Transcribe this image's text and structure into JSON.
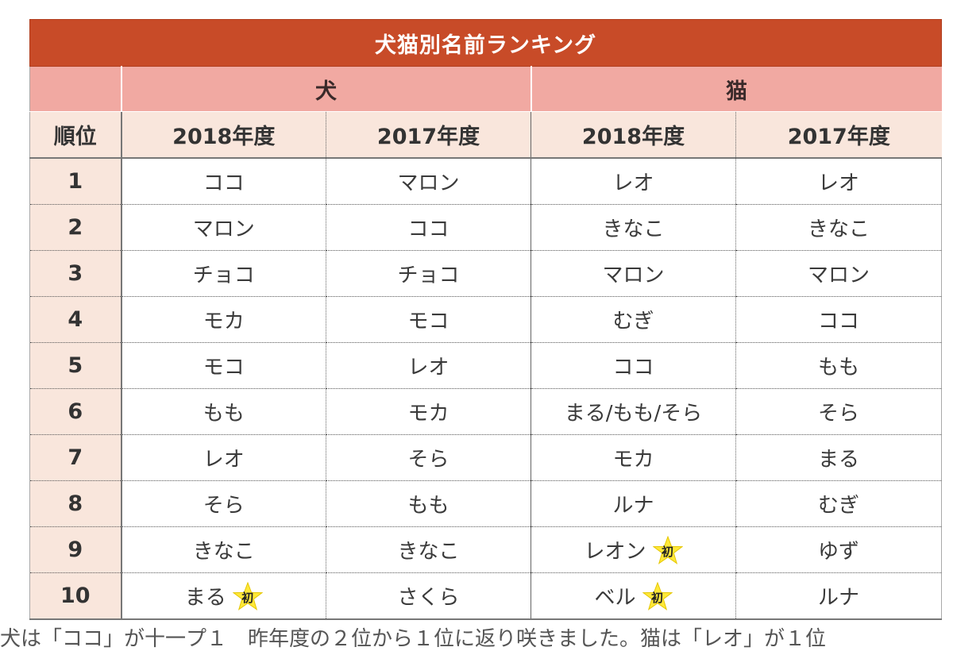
{
  "table": {
    "title": "犬猫別名前ランキング",
    "species": {
      "dog": "犬",
      "cat": "猫"
    },
    "rank_header": "順位",
    "years": [
      "2018年度",
      "2017年度",
      "2018年度",
      "2017年度"
    ],
    "first_badge": "初",
    "rows": [
      {
        "rank": "1",
        "dog_2018": "ココ",
        "dog_2017": "マロン",
        "cat_2018": "レオ",
        "cat_2017": "レオ"
      },
      {
        "rank": "2",
        "dog_2018": "マロン",
        "dog_2017": "ココ",
        "cat_2018": "きなこ",
        "cat_2017": "きなこ"
      },
      {
        "rank": "3",
        "dog_2018": "チョコ",
        "dog_2017": "チョコ",
        "cat_2018": "マロン",
        "cat_2017": "マロン"
      },
      {
        "rank": "4",
        "dog_2018": "モカ",
        "dog_2017": "モコ",
        "cat_2018": "むぎ",
        "cat_2017": "ココ"
      },
      {
        "rank": "5",
        "dog_2018": "モコ",
        "dog_2017": "レオ",
        "cat_2018": "ココ",
        "cat_2017": "もも"
      },
      {
        "rank": "6",
        "dog_2018": "もも",
        "dog_2017": "モカ",
        "cat_2018": "まる/もも/そら",
        "cat_2017": "そら"
      },
      {
        "rank": "7",
        "dog_2018": "レオ",
        "dog_2017": "そら",
        "cat_2018": "モカ",
        "cat_2017": "まる"
      },
      {
        "rank": "8",
        "dog_2018": "そら",
        "dog_2017": "もも",
        "cat_2018": "ルナ",
        "cat_2017": "むぎ"
      },
      {
        "rank": "9",
        "dog_2018": "きなこ",
        "dog_2017": "きなこ",
        "cat_2018": "レオン",
        "cat_2017": "ゆず"
      },
      {
        "rank": "10",
        "dog_2018": "まる",
        "dog_2017": "さくら",
        "cat_2018": "ベル",
        "cat_2017": "ルナ"
      }
    ],
    "star_color": "#ffe83a",
    "header_color": "#c84b28",
    "species_color": "#f1a9a2",
    "subheader_color": "#f9e6dc"
  },
  "footer_text": "犬は「ココ」が十一プ１　昨年度の２位から１位に返り咲きました。猫は「レオ」が１位"
}
